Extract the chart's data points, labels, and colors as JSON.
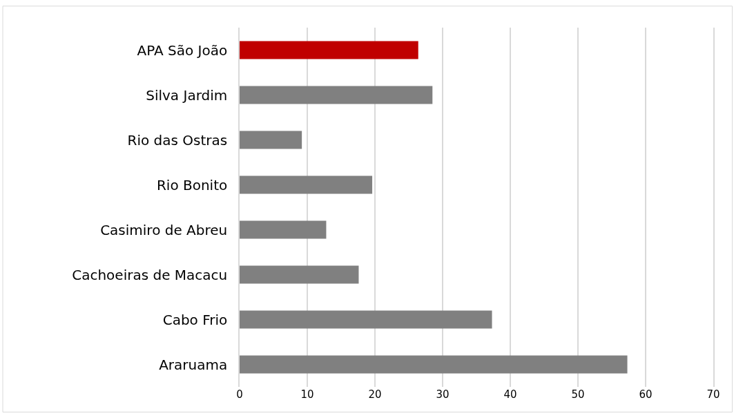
{
  "chart_data": {
    "type": "bar",
    "orientation": "horizontal",
    "categories": [
      "APA São João",
      "Silva Jardim",
      "Rio das Ostras",
      "Rio Bonito",
      "Casimiro de Abreu",
      "Cachoeiras de Macacu",
      "Cabo Frio",
      "Araruama"
    ],
    "values": [
      26.4,
      28.5,
      9.2,
      19.6,
      12.8,
      17.6,
      37.3,
      57.3
    ],
    "colors": [
      "#c00000",
      "#808080",
      "#808080",
      "#808080",
      "#808080",
      "#808080",
      "#808080",
      "#808080"
    ],
    "xlim": [
      0,
      70
    ],
    "xticks": [
      0,
      10,
      20,
      30,
      40,
      50,
      60,
      70
    ],
    "grid": "x"
  }
}
